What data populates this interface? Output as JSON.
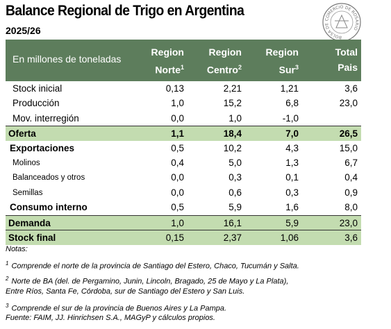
{
  "header": {
    "title": "Balance Regional de Trigo en Argentina",
    "subtitle": "2025/26",
    "logo_text": "BOLSA DE COMERCIO DE ROSARIO"
  },
  "table": {
    "unit_label": "En millones de toneladas",
    "columns": [
      {
        "line1": "Region",
        "line2": "Norte",
        "sup": "1"
      },
      {
        "line1": "Region",
        "line2": "Centro",
        "sup": "2"
      },
      {
        "line1": "Region",
        "line2": "Sur",
        "sup": "3"
      },
      {
        "line1": "Total",
        "line2": "Pais"
      }
    ],
    "rows": [
      {
        "label": "Stock inicial",
        "kind": "item",
        "cells": [
          "0,13",
          "2,21",
          "1,21",
          "3,6"
        ]
      },
      {
        "label": "Producción",
        "kind": "item",
        "cells": [
          "1,0",
          "15,2",
          "6,8",
          "23,0"
        ]
      },
      {
        "label": "Mov. interregión",
        "kind": "item",
        "cells": [
          "0,0",
          "1,0",
          "-1,0",
          null
        ]
      },
      {
        "label": "Oferta",
        "kind": "total",
        "cells": [
          "1,1",
          "18,4",
          "7,0",
          "26,5"
        ]
      },
      {
        "label": "Exportaciones",
        "kind": "group",
        "cells": [
          "0,5",
          "10,2",
          "4,3",
          "15,0"
        ]
      },
      {
        "label": "Molinos",
        "kind": "sub",
        "cells": [
          "0,4",
          "5,0",
          "1,3",
          "6,7"
        ]
      },
      {
        "label": "Balanceados y otros",
        "kind": "sub",
        "cells": [
          "0,0",
          "0,3",
          "0,1",
          "0,4"
        ]
      },
      {
        "label": "Semillas",
        "kind": "sub",
        "cells": [
          "0,0",
          "0,6",
          "0,3",
          "0,9"
        ]
      },
      {
        "label": "Consumo interno",
        "kind": "group",
        "cells": [
          "0,5",
          "5,9",
          "1,6",
          "8,0"
        ]
      },
      {
        "label": "Demanda",
        "kind": "total-light",
        "cells": [
          "1,0",
          "16,1",
          "5,9",
          "23,0"
        ]
      },
      {
        "label": "Stock final",
        "kind": "total-light",
        "cells": [
          "0,15",
          "2,37",
          "1,06",
          "3,6"
        ]
      }
    ]
  },
  "notes": {
    "heading": "Notas:",
    "items": [
      {
        "marker": "1",
        "lines": [
          "Comprende el norte de la provincia de Santiago del Estero, Chaco, Tucumán y Salta."
        ]
      },
      {
        "marker": "2",
        "lines": [
          "Norte de BA (del. de Pergamino, Junin, Lincoln, Bragado, 25 de Mayo y La Plata),",
          "Entre Ríos, Santa Fe, Córdoba, sur de Santiago del Estero y San Luis."
        ]
      },
      {
        "marker": "3",
        "lines": [
          "Comprende el sur de la provincia de Buenos Aires y La Pampa."
        ]
      }
    ],
    "source": "Fuente: FAIM, JJ. Hinrichsen S.A., MAGyP y cálculos propios."
  }
}
